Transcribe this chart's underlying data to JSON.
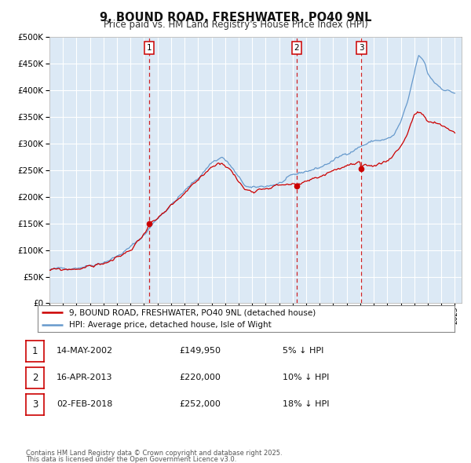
{
  "title": "9, BOUND ROAD, FRESHWATER, PO40 9NL",
  "subtitle": "Price paid vs. HM Land Registry's House Price Index (HPI)",
  "legend_line1": "9, BOUND ROAD, FRESHWATER, PO40 9NL (detached house)",
  "legend_line2": "HPI: Average price, detached house, Isle of Wight",
  "footer_line1": "Contains HM Land Registry data © Crown copyright and database right 2025.",
  "footer_line2": "This data is licensed under the Open Government Licence v3.0.",
  "transactions": [
    {
      "label": "1",
      "date": "14-MAY-2002",
      "price": 149950,
      "hpi_diff": "5% ↓ HPI"
    },
    {
      "label": "2",
      "date": "16-APR-2013",
      "price": 220000,
      "hpi_diff": "10% ↓ HPI"
    },
    {
      "label": "3",
      "date": "02-FEB-2018",
      "price": 252000,
      "hpi_diff": "18% ↓ HPI"
    }
  ],
  "transaction_dates_decimal": [
    2002.37,
    2013.29,
    2018.09
  ],
  "transaction_prices": [
    149950,
    220000,
    252000
  ],
  "ylim": [
    0,
    500000
  ],
  "yticks": [
    0,
    50000,
    100000,
    150000,
    200000,
    250000,
    300000,
    350000,
    400000,
    450000,
    500000
  ],
  "plot_bg_color": "#dce9f5",
  "hpi_line_color": "#6699cc",
  "price_line_color": "#cc0000",
  "vline_color": "#cc0000",
  "marker_color": "#cc0000",
  "grid_color": "#ffffff"
}
